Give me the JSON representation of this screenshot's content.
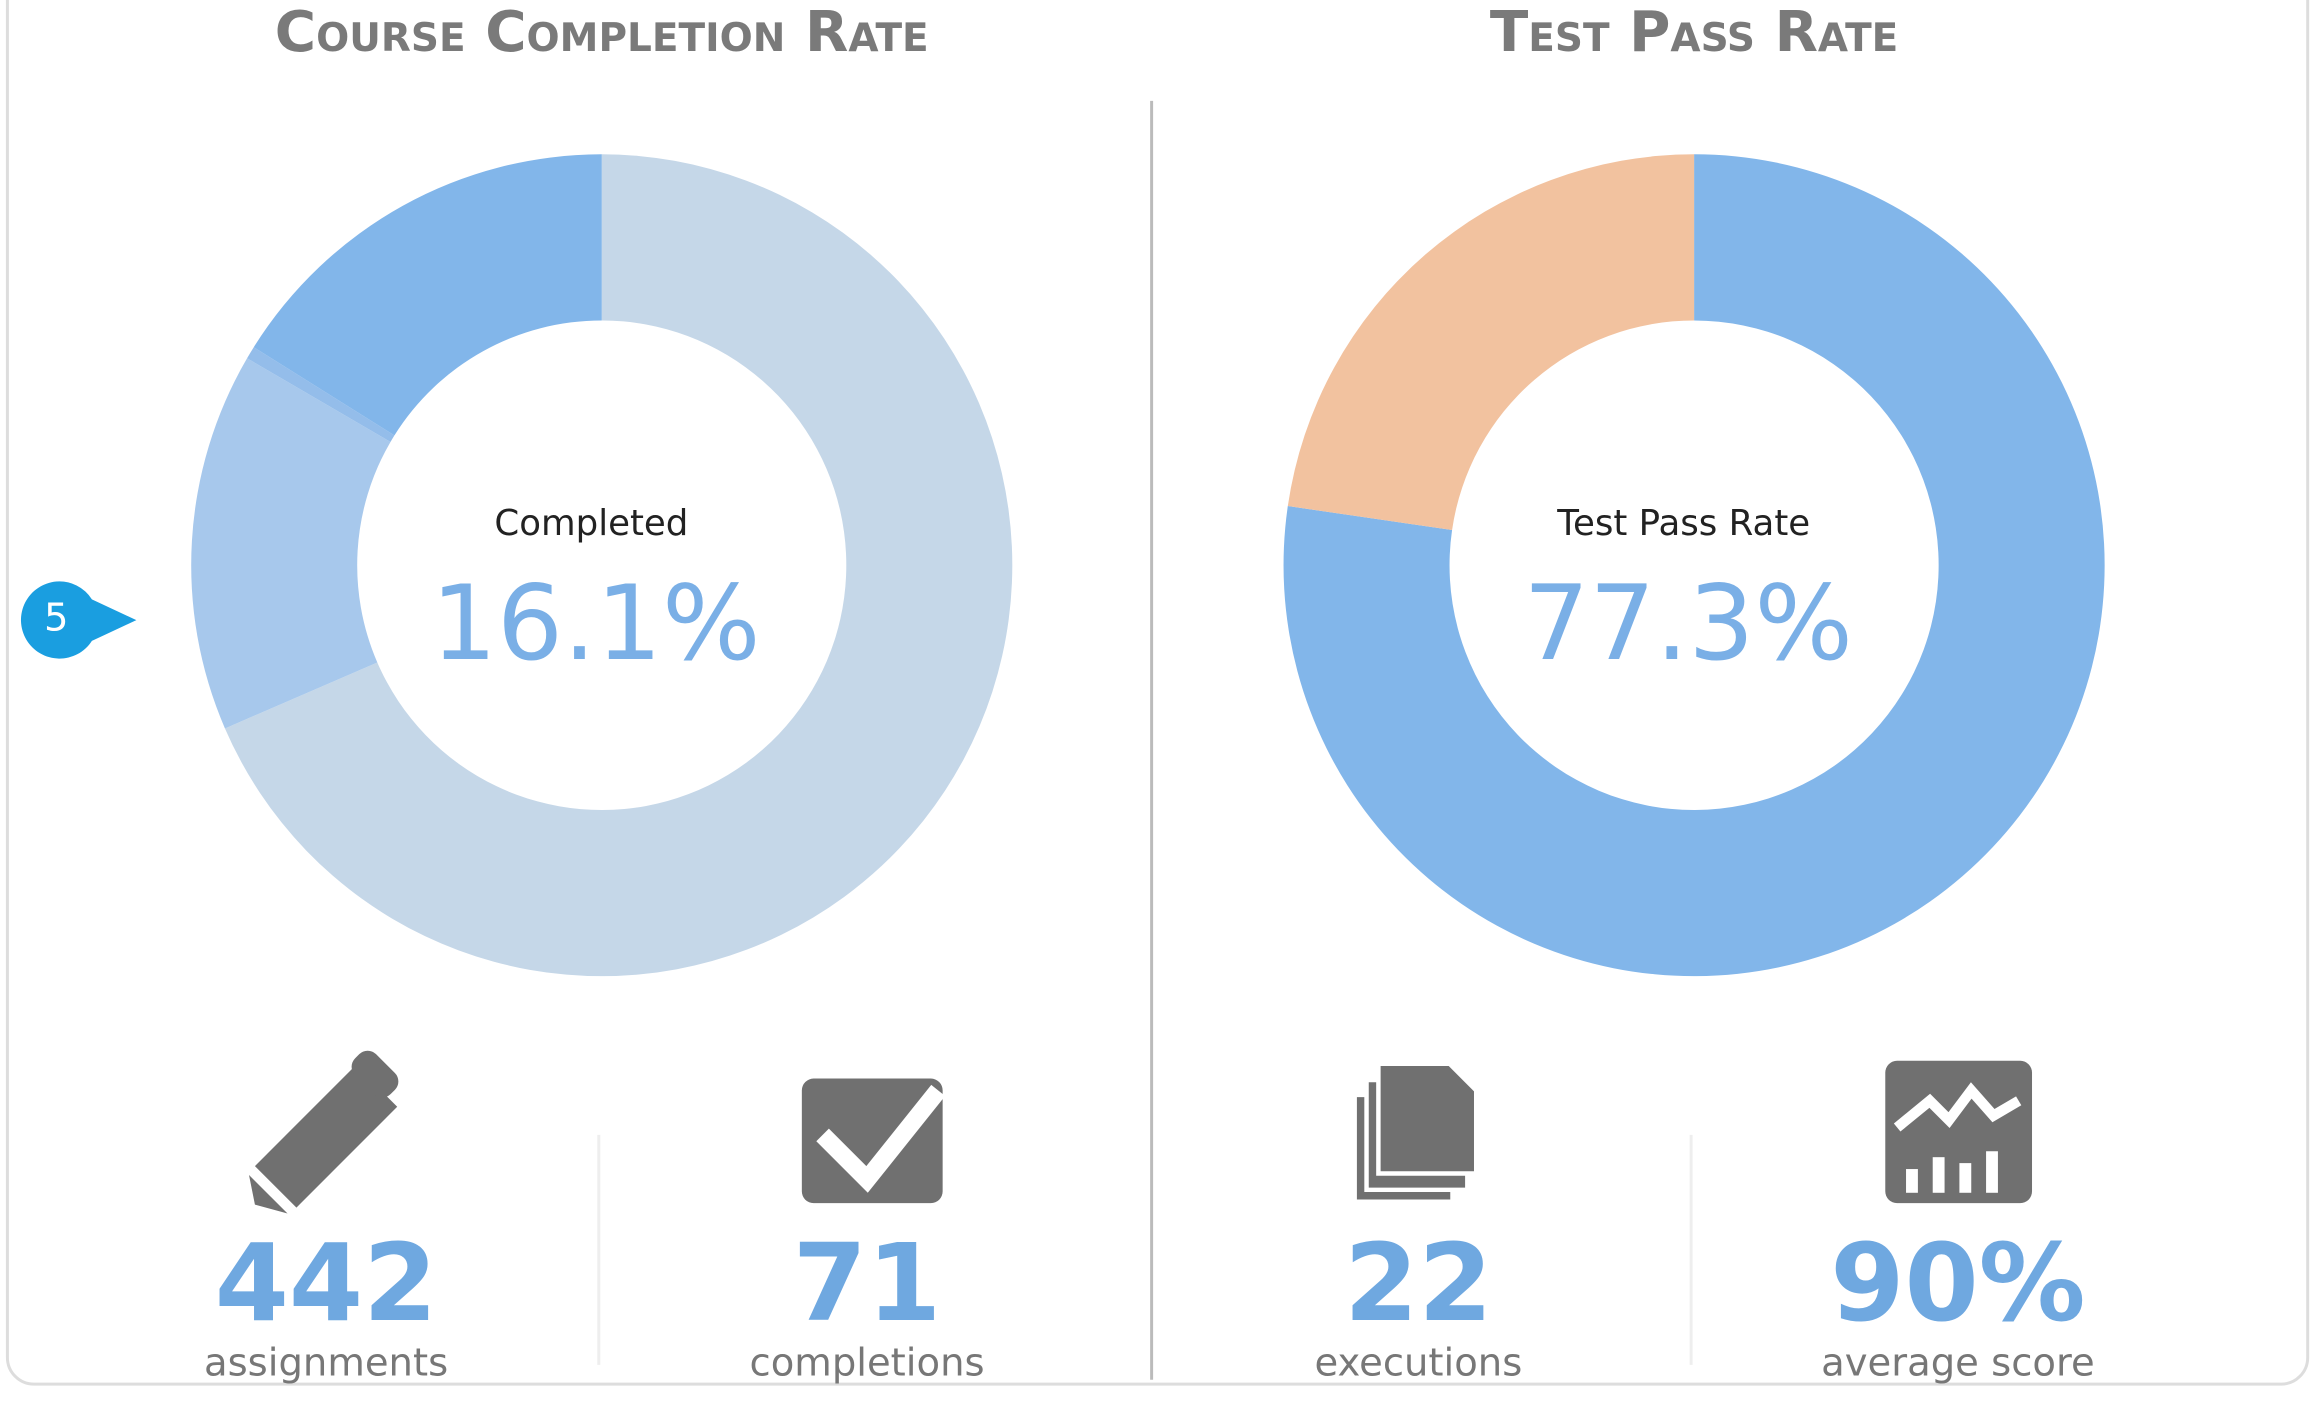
{
  "chart_data": [
    {
      "type": "donut",
      "title": "Course Completion Rate",
      "center_label": "Completed",
      "center_value": "16.1%",
      "values": [
        68.5,
        14.9,
        0.5,
        16.1
      ],
      "colors": [
        "#c5d7e8",
        "#a7c8ec",
        "#94bdea",
        "#82b6ea"
      ]
    },
    {
      "type": "donut",
      "title": "Test Pass Rate",
      "center_label": "Test Pass Rate",
      "center_value": "77.3%",
      "values": [
        77.3,
        22.7
      ],
      "colors": [
        "#82b6ea",
        "#f2c29f"
      ]
    }
  ],
  "stats": [
    {
      "value": "442",
      "label": "assignments"
    },
    {
      "value": "71",
      "label": "completions"
    },
    {
      "value": "22",
      "label": "executions"
    },
    {
      "value": "90%",
      "label": "average score"
    }
  ],
  "marker": "5"
}
